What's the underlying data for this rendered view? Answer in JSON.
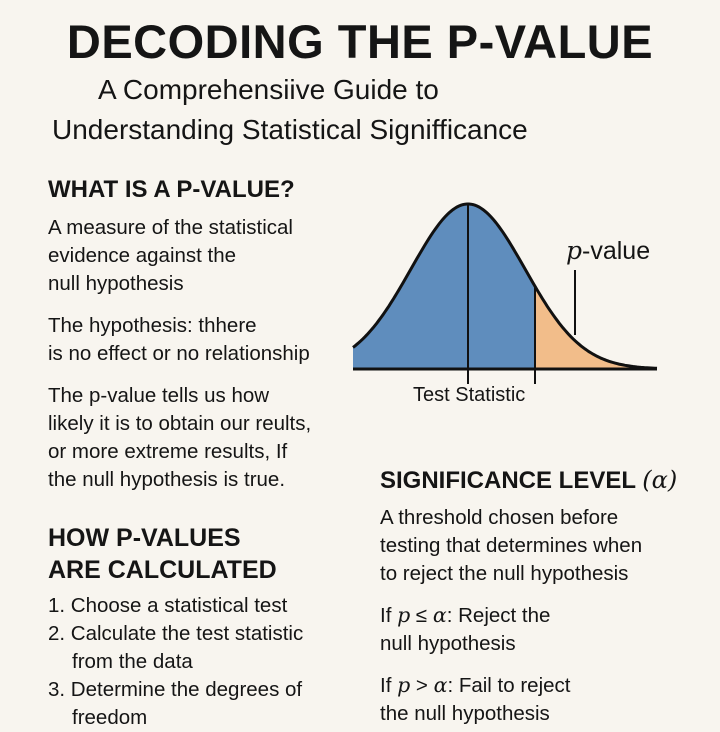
{
  "title": "DECODING THE P-VALUE",
  "subtitle": [
    "A Comprehensiive Guide to",
    "Understanding Statistical Signifficance"
  ],
  "what_is": {
    "heading": "WHAT IS A P-VALUE?",
    "para1": [
      "A measure of the statistical",
      "evidence against the",
      "null hypothesis"
    ],
    "para2": [
      "The hypothesis: thhere",
      "is no effect or no relationship"
    ],
    "para3": [
      "The p-value tells us how",
      "likely it is to obtain our reults,",
      "or more extreme results, If",
      "the null hypothesis is true."
    ]
  },
  "diagram": {
    "p_value_label_italic": "p",
    "p_value_label_rest": "-value",
    "test_statistic_label": "Test Statistic",
    "colors": {
      "body": "#5f8dbd",
      "tail": "#f2bd8a",
      "line": "#111111"
    }
  },
  "how_calculated": {
    "heading": [
      "HOW P-VALUES",
      "ARE CALCULATED"
    ],
    "steps": [
      [
        "1. Choose a statistical test"
      ],
      [
        "2. Calculate the test statistic",
        "from the data"
      ],
      [
        "3. Determine the degrees of",
        "freedom"
      ]
    ]
  },
  "significance": {
    "heading": "SIGNIFICANCE LEVEL",
    "alpha": "(α)",
    "para": [
      "A threshold chosen before",
      "testing that determines when",
      "to reject the null hypothesis"
    ],
    "rule1": {
      "p": "p",
      "op": " ≤ ",
      "alpha": "α",
      "rest": ": Reject the",
      "line2": "null hypothesis",
      "prefix": "If "
    },
    "rule2": {
      "p": "p",
      "op": " > ",
      "alpha": "α",
      "rest": ": Fail to reject",
      "line2": "the null hypothesis",
      "prefix": "If "
    }
  }
}
